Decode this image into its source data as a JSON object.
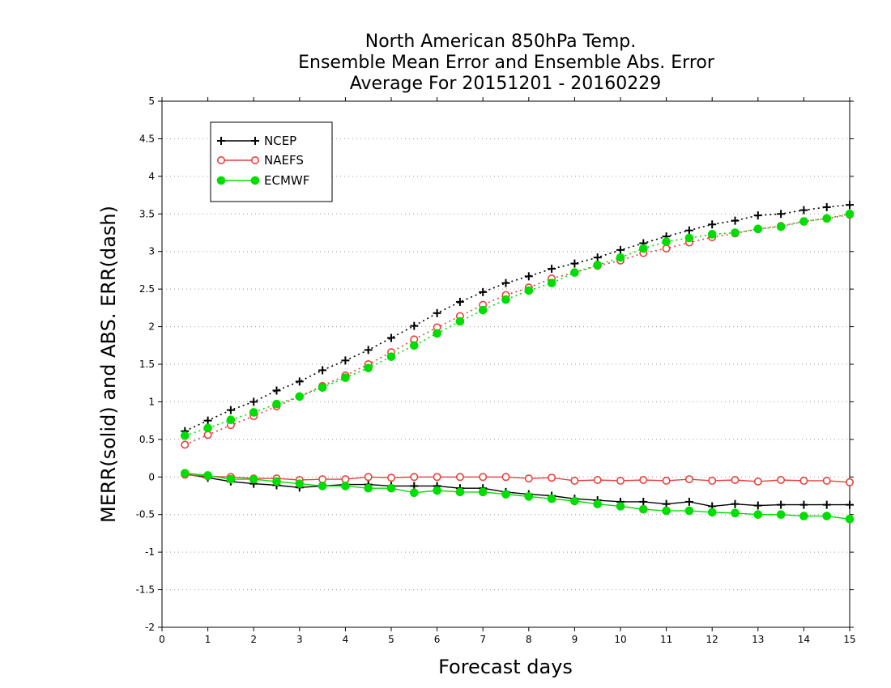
{
  "chart_data": {
    "type": "line",
    "title_lines": [
      "North American 850hPa Temp.",
      "Ensemble Mean Error and Ensemble Abs. Error",
      "Average For 20151201 - 20160229"
    ],
    "xlabel": "Forecast days",
    "ylabel": "MERR(solid) and ABS. ERR(dash)",
    "xlim": [
      0,
      15
    ],
    "ylim": [
      -2,
      5
    ],
    "xticks": [
      0,
      1,
      2,
      3,
      4,
      5,
      6,
      7,
      8,
      9,
      10,
      11,
      12,
      13,
      14,
      15
    ],
    "yticks": [
      -2,
      -1.5,
      -1,
      -0.5,
      0,
      0.5,
      1,
      1.5,
      2,
      2.5,
      3,
      3.5,
      4,
      4.5,
      5
    ],
    "ytick_labels": [
      "-2",
      "-1.5",
      "-1",
      "-0.5",
      "0",
      "0.5",
      "1",
      "1.5",
      "2",
      "2.5",
      "3",
      "3.5",
      "4",
      "4.5",
      "5"
    ],
    "grid": "dotted-horizontal",
    "legend_position": "top-left",
    "x": [
      0.5,
      1,
      1.5,
      2,
      2.5,
      3,
      3.5,
      4,
      4.5,
      5,
      5.5,
      6,
      6.5,
      7,
      7.5,
      8,
      8.5,
      9,
      9.5,
      10,
      10.5,
      11,
      11.5,
      12,
      12.5,
      13,
      13.5,
      14,
      14.5,
      15
    ],
    "series": [
      {
        "name": "NCEP",
        "color": "#000000",
        "marker": "plus",
        "abs_err": [
          0.61,
          0.75,
          0.89,
          1.0,
          1.15,
          1.27,
          1.42,
          1.55,
          1.69,
          1.85,
          2.01,
          2.18,
          2.33,
          2.46,
          2.58,
          2.67,
          2.77,
          2.84,
          2.92,
          3.02,
          3.11,
          3.2,
          3.28,
          3.36,
          3.41,
          3.48,
          3.5,
          3.55,
          3.59,
          3.62
        ],
        "mean_err": [
          0.04,
          -0.01,
          -0.06,
          -0.09,
          -0.11,
          -0.14,
          -0.12,
          -0.1,
          -0.1,
          -0.12,
          -0.12,
          -0.12,
          -0.15,
          -0.15,
          -0.2,
          -0.23,
          -0.25,
          -0.29,
          -0.31,
          -0.33,
          -0.33,
          -0.36,
          -0.33,
          -0.39,
          -0.36,
          -0.38,
          -0.37,
          -0.37,
          -0.37,
          -0.37
        ]
      },
      {
        "name": "NAEFS",
        "color": "#e8413c",
        "marker": "open-circle",
        "abs_err": [
          0.43,
          0.56,
          0.69,
          0.81,
          0.94,
          1.07,
          1.21,
          1.35,
          1.5,
          1.66,
          1.83,
          1.99,
          2.14,
          2.29,
          2.42,
          2.52,
          2.64,
          2.72,
          2.81,
          2.88,
          2.98,
          3.04,
          3.12,
          3.19,
          3.24,
          3.3,
          3.34,
          3.4,
          3.44,
          3.49
        ],
        "mean_err": [
          0.03,
          0.01,
          0.0,
          -0.02,
          -0.02,
          -0.04,
          -0.03,
          -0.03,
          0.0,
          -0.01,
          0.0,
          0.0,
          0.0,
          0.0,
          0.0,
          -0.02,
          -0.01,
          -0.05,
          -0.04,
          -0.05,
          -0.04,
          -0.05,
          -0.03,
          -0.05,
          -0.04,
          -0.06,
          -0.04,
          -0.05,
          -0.05,
          -0.07
        ]
      },
      {
        "name": "ECMWF",
        "color": "#00dd00",
        "marker": "filled-circle",
        "abs_err": [
          0.55,
          0.65,
          0.76,
          0.86,
          0.97,
          1.07,
          1.19,
          1.32,
          1.45,
          1.6,
          1.75,
          1.91,
          2.07,
          2.22,
          2.36,
          2.48,
          2.58,
          2.72,
          2.82,
          2.92,
          3.04,
          3.13,
          3.18,
          3.23,
          3.25,
          3.3,
          3.33,
          3.4,
          3.44,
          3.5
        ],
        "mean_err": [
          0.05,
          0.02,
          -0.03,
          -0.03,
          -0.06,
          -0.09,
          -0.12,
          -0.12,
          -0.15,
          -0.15,
          -0.21,
          -0.18,
          -0.2,
          -0.2,
          -0.23,
          -0.26,
          -0.29,
          -0.32,
          -0.36,
          -0.39,
          -0.43,
          -0.45,
          -0.45,
          -0.47,
          -0.48,
          -0.5,
          -0.5,
          -0.52,
          -0.52,
          -0.56
        ]
      }
    ]
  }
}
